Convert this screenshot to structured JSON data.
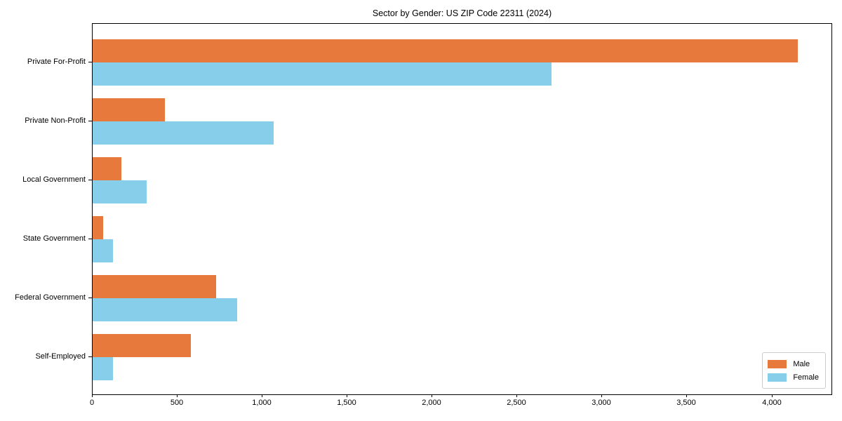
{
  "title": "Sector by Gender: US ZIP Code 22311 (2024)",
  "chart_data": {
    "type": "bar",
    "orientation": "horizontal",
    "title": "Sector by Gender: US ZIP Code 22311 (2024)",
    "categories": [
      "Private For-Profit",
      "Private Non-Profit",
      "Local Government",
      "State Government",
      "Federal Government",
      "Self-Employed"
    ],
    "series": [
      {
        "name": "Male",
        "color": "#E8793D",
        "values": [
          4150,
          425,
          170,
          60,
          725,
          580
        ]
      },
      {
        "name": "Female",
        "color": "#87CEEB",
        "values": [
          2700,
          1065,
          320,
          120,
          850,
          120
        ]
      }
    ],
    "xlabel": "",
    "ylabel": "",
    "xlim": [
      0,
      4357
    ],
    "xticks": [
      0,
      500,
      1000,
      1500,
      2000,
      2500,
      3000,
      3500,
      4000
    ],
    "xtick_labels": [
      "0",
      "500",
      "1,000",
      "1,500",
      "2,000",
      "2,500",
      "3,000",
      "3,500",
      "4,000"
    ],
    "grid": false,
    "legend_position": "lower right",
    "frame": true,
    "colors": {
      "male": "#E8793D",
      "female": "#87CEEB",
      "axis": "#000000",
      "legend_border": "#cccccc",
      "background": "#ffffff"
    }
  }
}
